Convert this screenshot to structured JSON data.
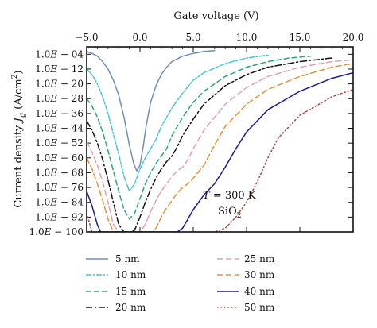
{
  "chart_data": {
    "type": "line",
    "xlabel": "Gate voltage (V)",
    "ylabel_main": "Current density ",
    "ylabel_var": "J",
    "ylabel_sub": "g",
    "ylabel_unit": " (A/cm",
    "ylabel_sup": "2",
    "ylabel_close": ")",
    "xlim": [
      -5.0,
      20.0
    ],
    "ylim_exponent": [
      -100,
      0
    ],
    "y_scale": "log",
    "x_ticks": [
      "−5.0",
      "0.0",
      "5.0",
      "10.0",
      "15.0",
      "20.0"
    ],
    "x_tick_values": [
      -5,
      0,
      5,
      10,
      15,
      20
    ],
    "y_ticks": [
      "1.0E − 04",
      "1.0E − 12",
      "1.0E − 20",
      "1.0E − 28",
      "1.0E − 36",
      "1.0E − 44",
      "1.0E − 52",
      "1.0E − 60",
      "1.0E − 68",
      "1.0E − 76",
      "1.0E − 84",
      "1.0E − 92",
      "1.0E − 100"
    ],
    "y_tick_exponents": [
      -4,
      -12,
      -20,
      -28,
      -36,
      -44,
      -52,
      -60,
      -68,
      -76,
      -84,
      -92,
      -100
    ],
    "annotation_T_var": "T",
    "annotation_T_value": " = 300 K",
    "annotation_material": "SiO",
    "annotation_material_sub": "2",
    "legend_placement": "bottom",
    "series": [
      {
        "name": "5 nm",
        "color": "#6f8fb8",
        "dash": "none",
        "x": [
          -5.0,
          -4.5,
          -4.0,
          -3.5,
          -3.0,
          -2.5,
          -2.0,
          -1.5,
          -1.0,
          -0.6,
          -0.3,
          0.0,
          0.3,
          0.6,
          1.0,
          1.5,
          2.0,
          2.5,
          3.0,
          4.0,
          5.0,
          6.0,
          7.0
        ],
        "y": [
          -2.5,
          -3.5,
          -5,
          -8,
          -12,
          -18,
          -26,
          -38,
          -53,
          -63,
          -67,
          -64,
          -54,
          -42,
          -30,
          -21,
          -15,
          -11,
          -8,
          -5,
          -3.5,
          -2.5,
          -2.0
        ]
      },
      {
        "name": "10 nm",
        "color": "#49c4d6",
        "dash": "7 2 2 2",
        "x": [
          -5.0,
          -4.5,
          -4.0,
          -3.5,
          -3.0,
          -2.5,
          -2.0,
          -1.5,
          -1.0,
          -0.5,
          0.0,
          0.5,
          1.0,
          1.5,
          2.0,
          3.0,
          4.0,
          5.0,
          6.0,
          8.0,
          10.0,
          12.0
        ],
        "y": [
          -12,
          -15,
          -20,
          -27,
          -36,
          -47,
          -58,
          -70,
          -78,
          -74,
          -66,
          -60,
          -55,
          -50,
          -43,
          -33,
          -25,
          -18,
          -14,
          -9,
          -6,
          -4.5
        ]
      },
      {
        "name": "15 nm",
        "color": "#2aa87b",
        "dash": "6 4",
        "x": [
          -5.0,
          -4.5,
          -4.0,
          -3.5,
          -3.0,
          -2.5,
          -2.0,
          -1.5,
          -1.0,
          -0.5,
          0.0,
          0.5,
          1.0,
          1.5,
          2.0,
          2.5,
          3.0,
          4.0,
          5.0,
          6.0,
          8.0,
          10.0,
          12.0,
          14.0,
          16.0
        ],
        "y": [
          -28,
          -32,
          -38,
          -46,
          -56,
          -67,
          -78,
          -88,
          -93,
          -90,
          -82,
          -74,
          -68,
          -63,
          -59,
          -55,
          -48,
          -38,
          -30,
          -24,
          -16,
          -11,
          -8,
          -6,
          -5
        ]
      },
      {
        "name": "20 nm",
        "color": "#111111",
        "dash": "8 3 2 3",
        "x": [
          -5.0,
          -4.5,
          -4.0,
          -3.5,
          -3.0,
          -2.5,
          -2.0,
          -1.5,
          -1.2,
          -0.8,
          -0.5,
          0.0,
          0.5,
          1.0,
          1.5,
          2.0,
          2.5,
          3.0,
          3.5,
          4.0,
          5.0,
          6.0,
          8.0,
          10.0,
          12.0,
          15.0,
          18.0
        ],
        "y": [
          -40,
          -45,
          -52,
          -61,
          -72,
          -84,
          -96,
          -100,
          -100,
          -100,
          -99,
          -92,
          -84,
          -77,
          -71,
          -66,
          -62,
          -59,
          -54,
          -48,
          -39,
          -31,
          -21,
          -15,
          -11,
          -8,
          -6
        ]
      },
      {
        "name": "25 nm",
        "color": "#e3a0b4",
        "dash": "7 4",
        "x": [
          -5.0,
          -4.5,
          -4.0,
          -3.5,
          -3.0,
          -2.5,
          -2.0,
          -1.0,
          0.0,
          0.5,
          1.0,
          1.5,
          2.0,
          2.5,
          3.0,
          3.5,
          4.0,
          4.5,
          5.0,
          6.0,
          8.0,
          10.0,
          12.0,
          15.0,
          18.0,
          20.0
        ],
        "y": [
          -51,
          -57,
          -64,
          -73,
          -84,
          -96,
          -100,
          -100,
          -100,
          -96,
          -89,
          -83,
          -78,
          -74,
          -70,
          -67,
          -65,
          -61,
          -55,
          -45,
          -31,
          -22,
          -16,
          -11,
          -8,
          -7
        ]
      },
      {
        "name": "30 nm",
        "color": "#e0943a",
        "dash": "7 4",
        "x": [
          -5.0,
          -4.5,
          -4.0,
          -3.5,
          -3.0,
          -2.5,
          -2.0,
          -1.5,
          1.2,
          1.5,
          2.0,
          2.5,
          3.0,
          3.5,
          4.0,
          4.5,
          5.0,
          6.0,
          7.0,
          8.0,
          10.0,
          12.0,
          15.0,
          18.0,
          20.0
        ],
        "y": [
          -60,
          -66,
          -74,
          -83,
          -93,
          -100,
          -100,
          -100,
          -100,
          -98,
          -92,
          -87,
          -83,
          -79,
          -76,
          -74,
          -71,
          -64,
          -53,
          -43,
          -31,
          -23,
          -16,
          -11,
          -9
        ]
      },
      {
        "name": "40 nm",
        "color": "#1c1c8c",
        "dash": "none",
        "x": [
          -5.0,
          -4.5,
          -4.0,
          -3.7,
          1.4,
          2.0,
          2.5,
          3.0,
          3.5,
          4.0,
          4.5,
          5.0,
          5.5,
          6.0,
          7.0,
          8.0,
          9.0,
          10.0,
          12.0,
          15.0,
          18.0,
          20.0
        ],
        "y": [
          -78,
          -86,
          -96,
          -100,
          -100,
          -100,
          -100,
          -100,
          -100,
          -98,
          -93,
          -88,
          -84,
          -80,
          -74,
          -65,
          -55,
          -46,
          -34,
          -24,
          -17,
          -14
        ]
      },
      {
        "name": "50 nm",
        "color": "#a8463c",
        "dash": "1.5 3",
        "x": [
          -5.0,
          -4.8,
          -4.6,
          -4.5,
          2.0,
          2.5,
          3.0,
          3.5,
          4.0,
          5.0,
          6.0,
          7.0,
          8.0,
          9.0,
          10.0,
          11.0,
          12.0,
          13.0,
          15.0,
          18.0,
          20.0
        ],
        "y": [
          -90,
          -94,
          -98,
          -100,
          -100,
          -100,
          -100,
          -100,
          -100,
          -100,
          -100,
          -100,
          -98,
          -92,
          -84,
          -73,
          -60,
          -49,
          -37,
          -27,
          -23
        ]
      }
    ]
  }
}
